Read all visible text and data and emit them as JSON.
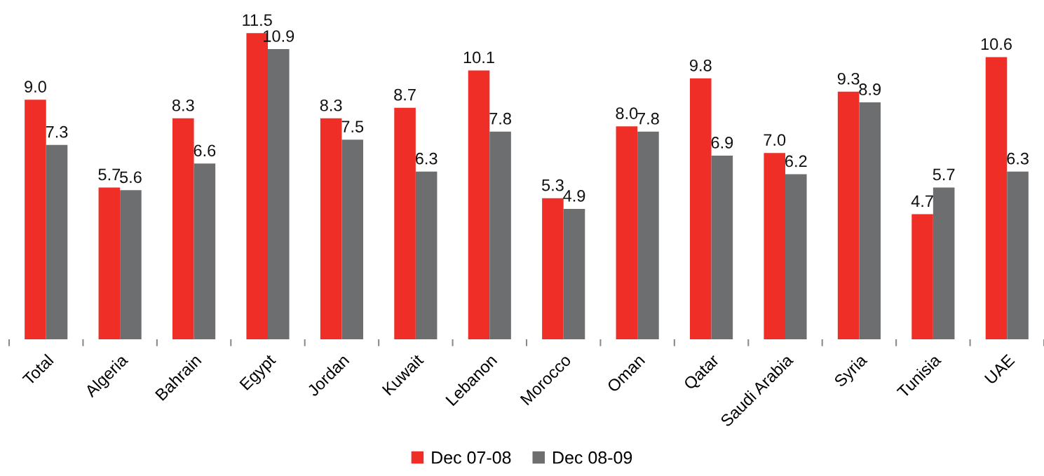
{
  "chart_data": {
    "type": "bar",
    "categories": [
      "Total",
      "Algeria",
      "Bahrain",
      "Egypt",
      "Jordan",
      "Kuwait",
      "Lebanon",
      "Morocco",
      "Oman",
      "Qatar",
      "Saudi Arabia",
      "Syria",
      "Tunisia",
      "UAE"
    ],
    "series": [
      {
        "name": "Dec 07-08",
        "color": "#ee2e27",
        "values": [
          9.0,
          5.7,
          8.3,
          11.5,
          8.3,
          8.7,
          10.1,
          5.3,
          8.0,
          9.8,
          7.0,
          9.3,
          4.7,
          10.6
        ],
        "value_labels": [
          "9.0",
          "5.7",
          "8.3",
          "11.5",
          "8.3",
          "8.7",
          "10.1",
          "5.3",
          "8.0",
          "9.8",
          "7.0",
          "9.3",
          "4.7",
          "10.6"
        ]
      },
      {
        "name": "Dec 08-09",
        "color": "#6d6e70",
        "values": [
          7.3,
          5.6,
          6.6,
          10.9,
          7.5,
          6.3,
          7.8,
          4.9,
          7.8,
          6.9,
          6.2,
          8.9,
          5.7,
          6.3
        ],
        "value_labels": [
          "7.3",
          "5.6",
          "6.6",
          "10.9",
          "7.5",
          "6.3",
          "7.8",
          "4.9",
          "7.8",
          "6.9",
          "6.2",
          "8.9",
          "5.7",
          "6.3"
        ]
      }
    ],
    "legend": "bottom",
    "grid": false,
    "tick_labels": "x"
  }
}
